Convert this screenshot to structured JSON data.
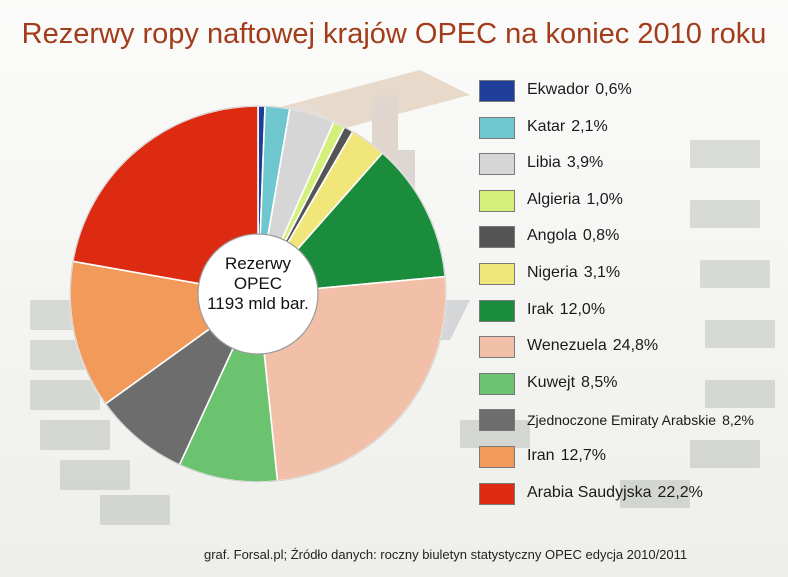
{
  "chart_data": {
    "type": "pie",
    "title": "Rezerwy ropy naftowej krajów OPEC na koniec 2010 roku",
    "center_label": [
      "Rezerwy",
      "OPEC",
      "1193 mld bar."
    ],
    "slices": [
      {
        "name": "Ekwador",
        "label": "0,6%",
        "value": 0.6,
        "color": "#1f3e99"
      },
      {
        "name": "Katar",
        "label": "2,1%",
        "value": 2.1,
        "color": "#6ec6cf"
      },
      {
        "name": "Libia",
        "label": "3,9%",
        "value": 3.9,
        "color": "#d6d6d6"
      },
      {
        "name": "Algieria",
        "label": "1,0%",
        "value": 1.0,
        "color": "#d4ef7a"
      },
      {
        "name": "Angola",
        "label": "0,8%",
        "value": 0.8,
        "color": "#555555"
      },
      {
        "name": "Nigeria",
        "label": "3,1%",
        "value": 3.1,
        "color": "#f0e67a"
      },
      {
        "name": "Irak",
        "label": "12,0%",
        "value": 12.0,
        "color": "#1b8c3c"
      },
      {
        "name": "Wenezuela",
        "label": "24,8%",
        "value": 24.8,
        "color": "#f2bfa8"
      },
      {
        "name": "Kuwejt",
        "label": "8,5%",
        "value": 8.5,
        "color": "#6cc36f"
      },
      {
        "name": "Zjednoczone Emiraty Arabskie",
        "label": "8,2%",
        "value": 8.2,
        "color": "#6d6d6d"
      },
      {
        "name": "Iran",
        "label": "12,7%",
        "value": 12.7,
        "color": "#f29a5a"
      },
      {
        "name": "Arabia Saudyjska",
        "label": "22,2%",
        "value": 22.2,
        "color": "#dd2b12"
      }
    ],
    "legend_position": "right"
  },
  "source": "graf. Forsal.pl; Źródło danych: roczny biuletyn statystyczny OPEC edycja 2010/2011"
}
